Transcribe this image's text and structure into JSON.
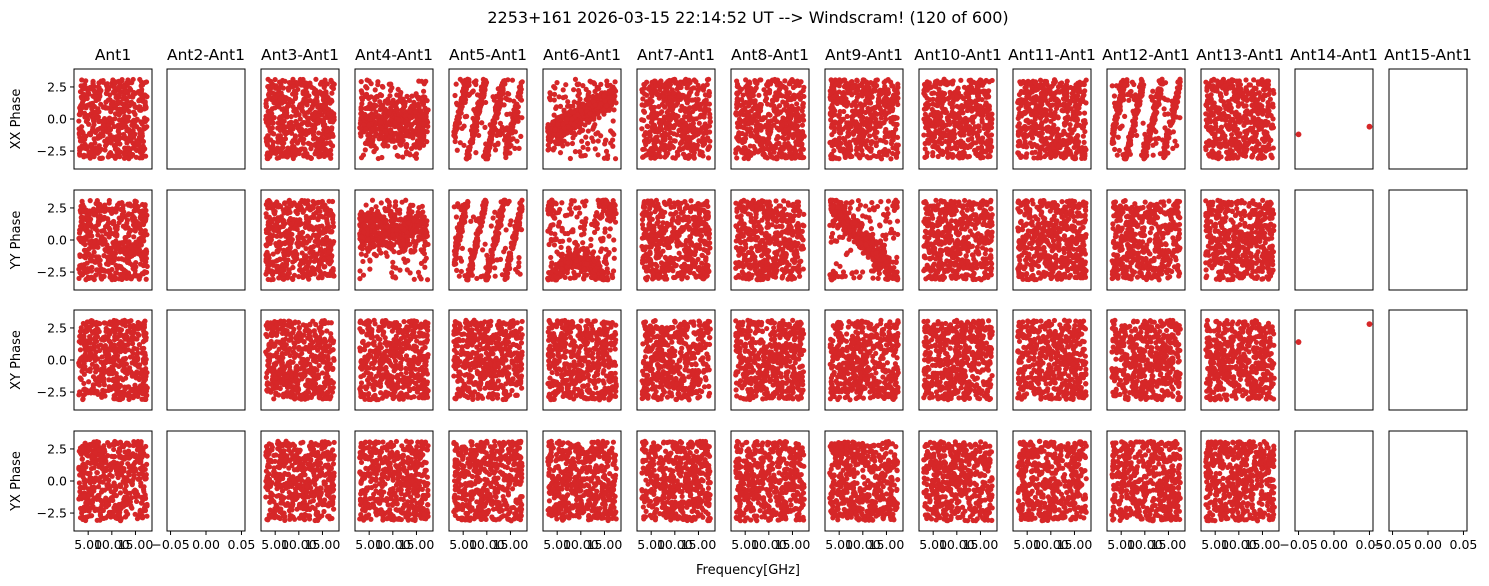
{
  "chart_data": {
    "type": "scatter",
    "title": "2253+161 2026-03-15 22:14:52 UT --> Windscram! (120 of 600)",
    "xlabel": "Frequency[GHz]",
    "columns": [
      "Ant1",
      "Ant2-Ant1",
      "Ant3-Ant1",
      "Ant4-Ant1",
      "Ant5-Ant1",
      "Ant6-Ant1",
      "Ant7-Ant1",
      "Ant8-Ant1",
      "Ant9-Ant1",
      "Ant10-Ant1",
      "Ant11-Ant1",
      "Ant12-Ant1",
      "Ant13-Ant1",
      "Ant14-Ant1",
      "Ant15-Ant1"
    ],
    "rows": [
      "XX Phase",
      "YY Phase",
      "XY Phase",
      "YX Phase"
    ],
    "ylim": [
      -3.9,
      3.9
    ],
    "yticks": [
      -2.5,
      0.0,
      2.5
    ],
    "ytick_labels": [
      "−2.5",
      "0.0",
      "2.5"
    ],
    "freq_xlim": [
      2.0,
      18.5
    ],
    "freq_xticks": [
      5.0,
      10.0,
      15.0
    ],
    "freq_xtick_labels": [
      "5.00",
      "10.00",
      "15.00"
    ],
    "empty_xlim": [
      -0.055,
      0.055
    ],
    "empty_xticks": [
      -0.05,
      0.0,
      0.05
    ],
    "empty_xtick_labels": [
      "−0.05",
      "0.00",
      "0.05"
    ],
    "points_per_panel": 500,
    "marker_color": "#d62728",
    "panel_kinds": {
      "random": [
        0,
        2,
        6,
        7,
        9,
        10,
        12
      ],
      "empty": [
        1,
        14
      ],
      "two_point": [
        13
      ]
    },
    "structured_panels": [
      {
        "col": 3,
        "row": 0,
        "pattern": "phase band around 0"
      },
      {
        "col": 3,
        "row": 1,
        "pattern": "phase band around 1"
      },
      {
        "col": 4,
        "row": 0,
        "pattern": "diagonal stripes"
      },
      {
        "col": 4,
        "row": 1,
        "pattern": "diagonal stripes"
      },
      {
        "col": 5,
        "row": 0,
        "pattern": "rising slope"
      },
      {
        "col": 5,
        "row": 1,
        "pattern": "wrapped curve"
      },
      {
        "col": 8,
        "row": 1,
        "pattern": "descending wedge"
      },
      {
        "col": 11,
        "row": 0,
        "pattern": "diagonal stripes"
      }
    ],
    "ant14_points": {
      "row0": [
        {
          "x": -0.05,
          "y": -1.2
        },
        {
          "x": 0.05,
          "y": -0.6
        }
      ],
      "row2": [
        {
          "x": -0.05,
          "y": 1.4
        },
        {
          "x": 0.05,
          "y": 2.8
        }
      ]
    }
  }
}
